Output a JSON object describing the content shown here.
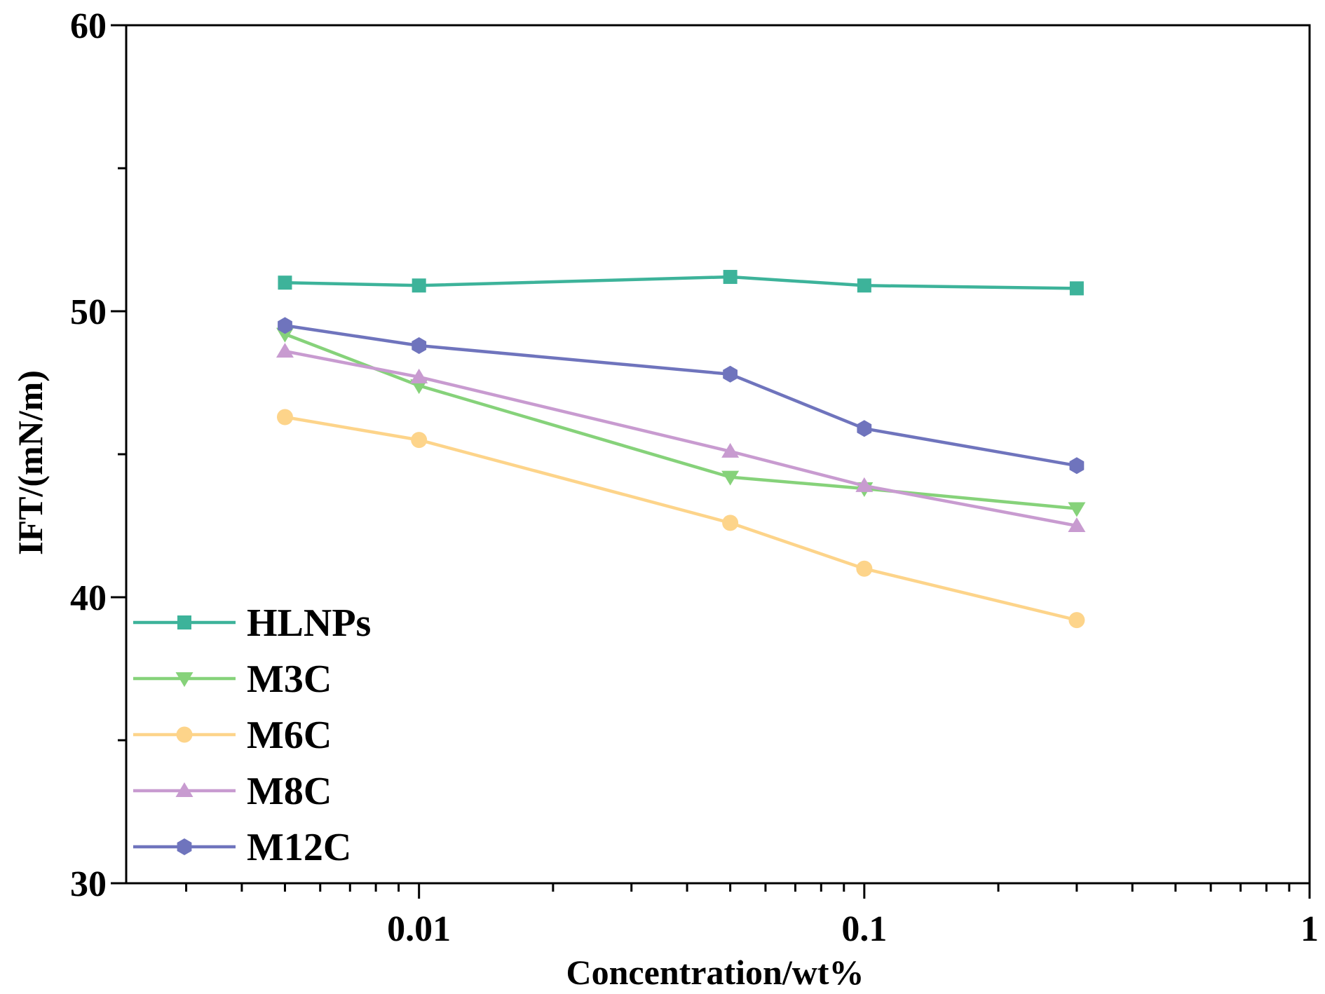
{
  "chart_data": {
    "type": "line",
    "xscale": "log",
    "title": "",
    "xlabel": "Concentration/wt%",
    "ylabel": "IFT/(mN/m)",
    "xlim": [
      0.0022,
      1
    ],
    "ylim": [
      30,
      60
    ],
    "x_tick_values": [
      0.01,
      0.1,
      1
    ],
    "x_tick_labels": [
      "0.01",
      "0.1",
      "1"
    ],
    "y_tick_values": [
      30,
      40,
      50,
      60
    ],
    "y_tick_labels": [
      "30",
      "40",
      "50",
      "60"
    ],
    "grid": false,
    "legend_position": "bottom-left",
    "x": [
      0.005,
      0.01,
      0.05,
      0.1,
      0.3
    ],
    "series": [
      {
        "name": "HLNPs",
        "marker": "square",
        "color": "#3db39a",
        "values": [
          51.0,
          50.9,
          51.2,
          50.9,
          50.8
        ]
      },
      {
        "name": "M3C",
        "marker": "triangle-down",
        "color": "#86d27a",
        "values": [
          49.2,
          47.4,
          44.2,
          43.8,
          43.1
        ]
      },
      {
        "name": "M6C",
        "marker": "circle",
        "color": "#fdd48a",
        "values": [
          46.3,
          45.5,
          42.6,
          41.0,
          39.2
        ]
      },
      {
        "name": "M8C",
        "marker": "triangle-up",
        "color": "#c89bd0",
        "values": [
          48.6,
          47.7,
          45.1,
          43.9,
          42.5
        ]
      },
      {
        "name": "M12C",
        "marker": "hexagon",
        "color": "#6f74bd",
        "values": [
          49.5,
          48.8,
          47.8,
          45.9,
          44.6
        ]
      }
    ]
  }
}
